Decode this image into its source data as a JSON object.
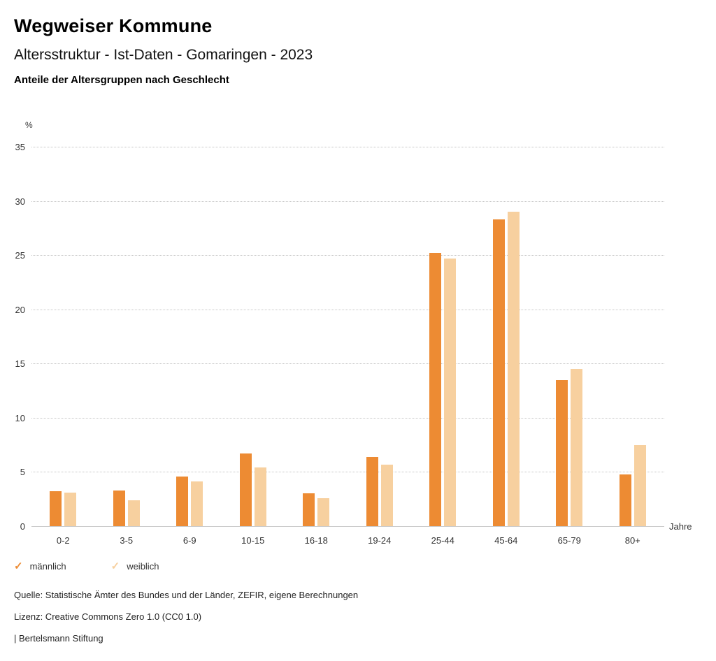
{
  "header": {
    "brand": "Wegweiser Kommune",
    "title": "Altersstruktur - Ist-Daten - Gomaringen - 2023",
    "subtitle": "Anteile der Altersgruppen nach Geschlecht"
  },
  "chart_data": {
    "type": "bar",
    "title": "Anteile der Altersgruppen nach Geschlecht",
    "categories": [
      "0-2",
      "3-5",
      "6-9",
      "10-15",
      "16-18",
      "19-24",
      "25-44",
      "45-64",
      "65-79",
      "80+"
    ],
    "series": [
      {
        "name": "männlich",
        "color": "#ED8B33",
        "values": [
          3.2,
          3.3,
          4.6,
          6.7,
          3.0,
          6.4,
          25.2,
          28.3,
          13.5,
          4.8
        ]
      },
      {
        "name": "weiblich",
        "color": "#F7D09F",
        "values": [
          3.1,
          2.4,
          4.1,
          5.4,
          2.6,
          5.7,
          24.7,
          29.0,
          14.5,
          7.5
        ]
      }
    ],
    "ylabel": "%",
    "xlabel": "Jahre",
    "ylim": [
      0,
      35
    ],
    "yticks": [
      0,
      5,
      10,
      15,
      20,
      25,
      30,
      35
    ],
    "grid": "dotted-horizontal",
    "legend_position": "bottom-left"
  },
  "legend": {
    "items": [
      {
        "label": "männlich",
        "color": "#ED8B33"
      },
      {
        "label": "weiblich",
        "color": "#F7D09F"
      }
    ]
  },
  "footer": {
    "source": "Quelle: Statistische Ämter des Bundes und der Länder, ZEFIR, eigene Berechnungen",
    "license": "Lizenz: Creative Commons Zero 1.0 (CC0 1.0)",
    "attribution": "| Bertelsmann Stiftung"
  }
}
